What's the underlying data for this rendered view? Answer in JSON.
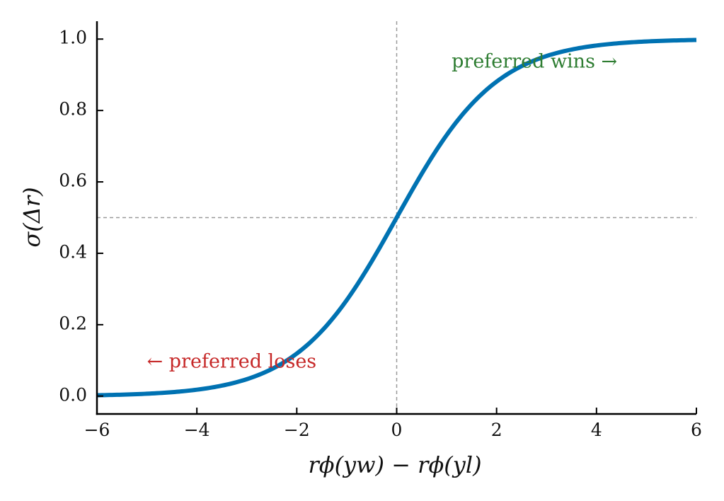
{
  "chart_data": {
    "type": "line",
    "title": "",
    "xlabel": "rϕ(yw) − rϕ(yl)",
    "ylabel": "σ(Δr)",
    "xlim": [
      -6,
      6
    ],
    "ylim": [
      -0.05,
      1.05
    ],
    "x_ticks": [
      -6,
      -4,
      -2,
      0,
      2,
      4,
      6
    ],
    "x_tick_labels": [
      "−6",
      "−4",
      "−2",
      "0",
      "2",
      "4",
      "6"
    ],
    "y_ticks": [
      0.0,
      0.2,
      0.4,
      0.6,
      0.8,
      1.0
    ],
    "y_tick_labels": [
      "0.0",
      "0.2",
      "0.4",
      "0.6",
      "0.8",
      "1.0"
    ],
    "grid": false,
    "series": [
      {
        "function": "sigmoid",
        "color": "#0072b2",
        "x": [
          -6,
          -5.5,
          -5,
          -4.5,
          -4,
          -3.5,
          -3,
          -2.5,
          -2,
          -1.5,
          -1,
          -0.5,
          0,
          0.5,
          1,
          1.5,
          2,
          2.5,
          3,
          3.5,
          4,
          4.5,
          5,
          5.5,
          6
        ],
        "values": [
          0.0025,
          0.0041,
          0.0067,
          0.011,
          0.018,
          0.029,
          0.047,
          0.076,
          0.119,
          0.182,
          0.269,
          0.378,
          0.5,
          0.622,
          0.731,
          0.818,
          0.881,
          0.924,
          0.953,
          0.971,
          0.982,
          0.989,
          0.993,
          0.996,
          0.9975
        ]
      }
    ],
    "reference_lines": [
      {
        "orientation": "vertical",
        "value": 0,
        "style": "dashed",
        "color": "#999999"
      },
      {
        "orientation": "horizontal",
        "value": 0.5,
        "style": "dashed",
        "color": "#999999"
      }
    ],
    "annotations": [
      {
        "text": "preferred wins →",
        "x": 1.1,
        "y": 0.935,
        "color": "#2e7d32"
      },
      {
        "text": "← preferred loses",
        "x": -5.0,
        "y": 0.095,
        "color": "#c62828"
      }
    ]
  }
}
